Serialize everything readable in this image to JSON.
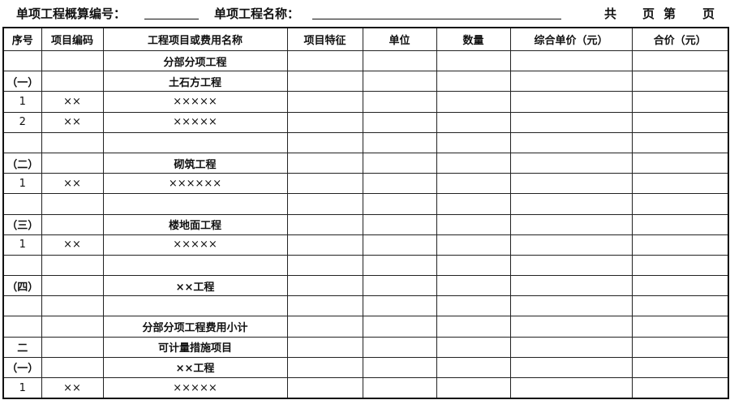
{
  "header": {
    "code_label": "单项工程概算编号：",
    "name_label": "单项工程名称：",
    "total_label": "共",
    "page_label": "页",
    "nth_label": "第",
    "page_label2": "页"
  },
  "columns": [
    "序号",
    "项目编码",
    "工程项目或费用名称",
    "项目特征",
    "单位",
    "数量",
    "综合单价（元）",
    "合价（元）"
  ],
  "rows": [
    {
      "no": "",
      "code": "",
      "name": "分部分项工程"
    },
    {
      "no": "（一）",
      "code": "",
      "name": "土石方工程"
    },
    {
      "no": "1",
      "code": "××",
      "name": "×××××"
    },
    {
      "no": "2",
      "code": "××",
      "name": "×××××"
    },
    {
      "no": "",
      "code": "",
      "name": ""
    },
    {
      "no": "（二）",
      "code": "",
      "name": "砌筑工程"
    },
    {
      "no": "1",
      "code": "××",
      "name": "××××××"
    },
    {
      "no": "",
      "code": "",
      "name": ""
    },
    {
      "no": "（三）",
      "code": "",
      "name": "楼地面工程"
    },
    {
      "no": "1",
      "code": "××",
      "name": "×××××"
    },
    {
      "no": "",
      "code": "",
      "name": ""
    },
    {
      "no": "（四）",
      "code": "",
      "name": "××工程"
    },
    {
      "no": "",
      "code": "",
      "name": ""
    },
    {
      "no": "",
      "code": "",
      "name": "分部分项工程费用小计"
    },
    {
      "no": "二",
      "code": "",
      "name": "可计量措施项目"
    },
    {
      "no": "（一）",
      "code": "",
      "name": "××工程"
    },
    {
      "no": "1",
      "code": "××",
      "name": "×××××"
    }
  ]
}
